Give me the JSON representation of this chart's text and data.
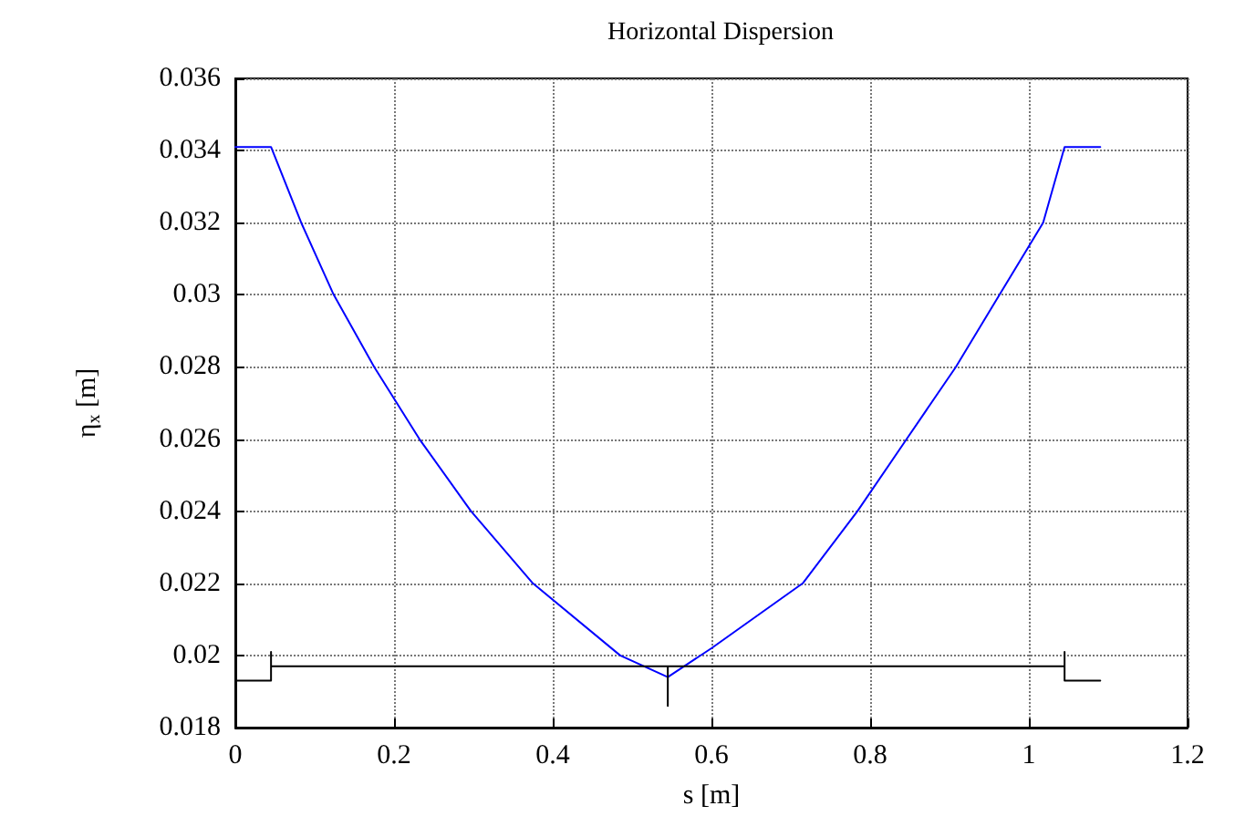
{
  "chart_data": {
    "type": "line",
    "title": "Horizontal Dispersion",
    "xlabel": "s [m]",
    "ylabel": "η$_{x}$ [m]",
    "series": [
      {
        "color": "#0000ff",
        "x": [
          0,
          0.045,
          0.083,
          0.124,
          0.175,
          0.232,
          0.297,
          0.375,
          0.485,
          0.545,
          0.6,
          0.715,
          0.784,
          0.846,
          0.908,
          0.963,
          1.018,
          1.045,
          1.09
        ],
        "values": [
          0.0341,
          0.0341,
          0.032,
          0.03,
          0.028,
          0.026,
          0.024,
          0.022,
          0.02,
          0.0194,
          0.0202,
          0.022,
          0.024,
          0.026,
          0.028,
          0.03,
          0.032,
          0.0341,
          0.0341
        ]
      },
      {
        "color": "#000000",
        "x": [
          0,
          0.045,
          0.045,
          0.045,
          0.545,
          0.545,
          0.545,
          1.045,
          1.045,
          1.045,
          1.09
        ],
        "values": [
          0.0193,
          0.0193,
          0.0201,
          0.0197,
          0.0197,
          0.0186,
          0.0197,
          0.0197,
          0.0201,
          0.0193,
          0.0193
        ]
      }
    ],
    "xlim": [
      0,
      1.2
    ],
    "xticks": [
      0,
      0.2,
      0.4,
      0.6,
      0.8,
      1,
      1.2
    ],
    "ylim": [
      0.018,
      0.036
    ],
    "yticks": [
      0.018,
      0.02,
      0.022,
      0.024,
      0.026,
      0.028,
      0.03,
      0.032,
      0.034,
      0.036
    ],
    "grid": true,
    "line_style": "solid",
    "marker": "none"
  }
}
